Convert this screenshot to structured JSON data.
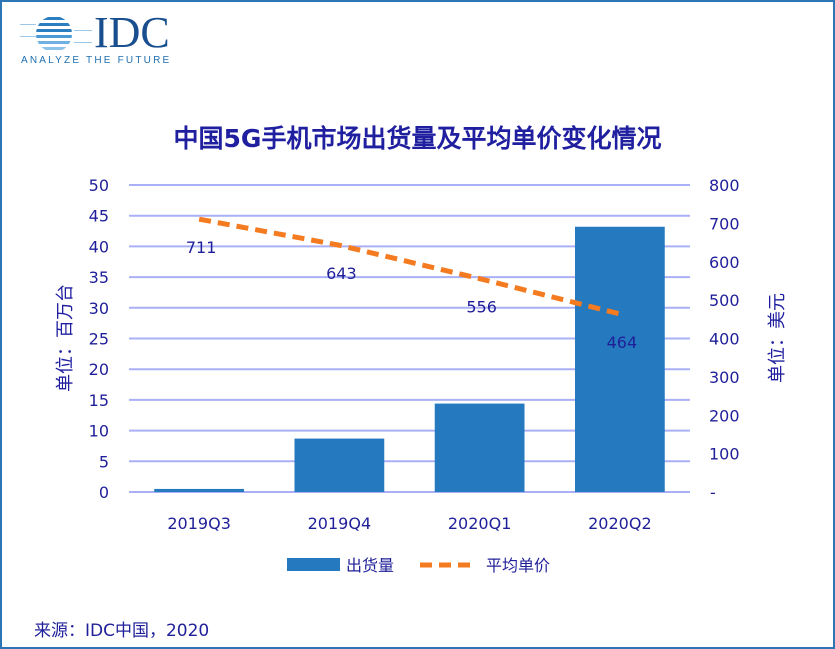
{
  "logo": {
    "name": "IDC",
    "tagline": "ANALYZE THE FUTURE"
  },
  "source": "来源：IDC中国，2020",
  "colors": {
    "bar": "#2579be",
    "line": "#f47b20",
    "text": "#1f1f99",
    "grid": "#aab0f5"
  },
  "chart_data": {
    "type": "bar+line",
    "title": "中国5G手机市场出货量及平均单价变化情况",
    "categories": [
      "2019Q3",
      "2019Q4",
      "2020Q1",
      "2020Q2"
    ],
    "series": [
      {
        "name": "出货量",
        "type": "bar",
        "axis": "left",
        "values": [
          0.5,
          8.7,
          14.4,
          43.2
        ]
      },
      {
        "name": "平均单价",
        "type": "line",
        "style": "dashed",
        "axis": "right",
        "values": [
          711,
          643,
          556,
          464
        ],
        "labels": [
          "711",
          "643",
          "556",
          "464"
        ]
      }
    ],
    "ylabel": "单位：百万台",
    "ylabel_right": "单位：美元",
    "ylim": [
      0,
      50
    ],
    "ylim_right": [
      0,
      800
    ],
    "yticks": [
      "0",
      "5",
      "10",
      "15",
      "20",
      "25",
      "30",
      "35",
      "40",
      "45",
      "50"
    ],
    "yticks_right": [
      "-",
      "100",
      "200",
      "300",
      "400",
      "500",
      "600",
      "700",
      "800"
    ],
    "grid": true,
    "legend": "bottom"
  }
}
